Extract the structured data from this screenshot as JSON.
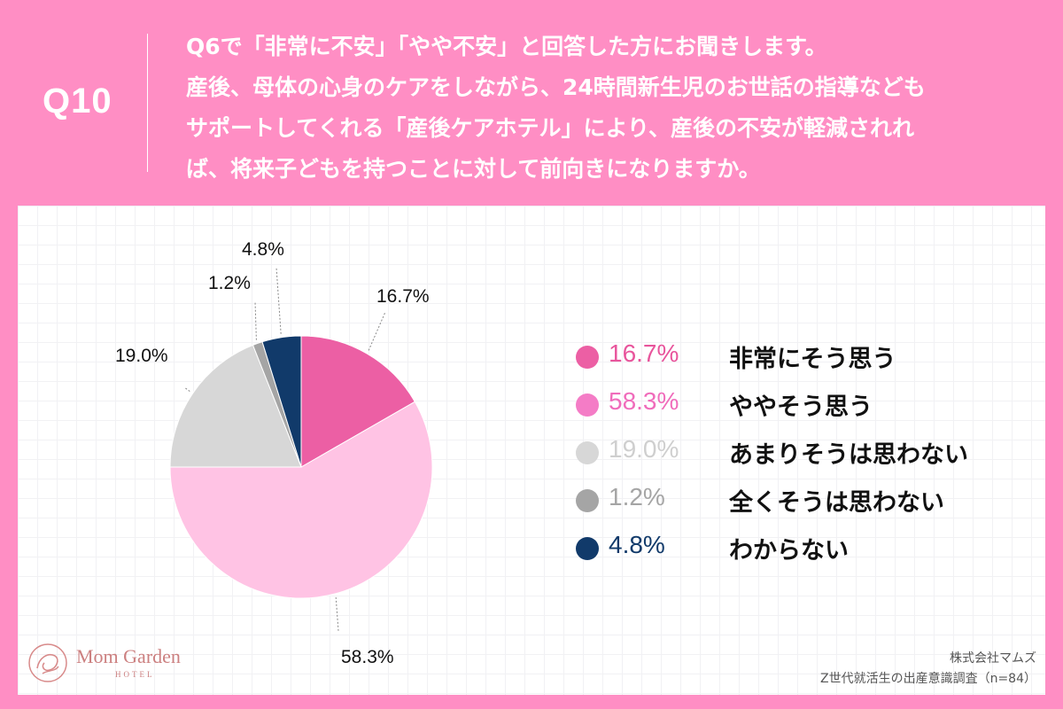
{
  "header": {
    "qnum": "Q10",
    "question": "Q6で「非常に不安」「やや不安」と回答した方にお聞きします。\n産後、母体の心身のケアをしながら、24時間新生児のお世話の指導なども\nサポートしてくれる「産後ケアホテル」により、産後の不安が軽減されれ\nば、将来子どもを持つことに対して前向きになりますか。"
  },
  "chart_data": {
    "type": "pie",
    "categories": [
      "非常にそう思う",
      "ややそう思う",
      "あまりそうは思わない",
      "全くそうは思わない",
      "わからない"
    ],
    "values": [
      16.7,
      58.3,
      19.0,
      1.2,
      4.8
    ],
    "value_labels": [
      "16.7%",
      "58.3%",
      "19.0%",
      "1.2%",
      "4.8%"
    ],
    "colors": [
      "#ec5fa4",
      "#ffc3e4",
      "#d7d7d7",
      "#a5a5a5",
      "#113a6a"
    ],
    "legend_colors": [
      "#ec5fa4",
      "#f47cc6",
      "#d7d7d7",
      "#a5a5a5",
      "#113a6a"
    ],
    "start_angle": "12 o'clock",
    "direction": "clockwise",
    "legend_position": "right"
  },
  "legend": [
    {
      "pct": "16.7%",
      "label": "非常にそう思う",
      "color": "#ec5fa4",
      "text_color": "#e8559c"
    },
    {
      "pct": "58.3%",
      "label": "ややそう思う",
      "color": "#f47cc6",
      "text_color": "#f06cbb"
    },
    {
      "pct": "19.0%",
      "label": "あまりそうは思わない",
      "color": "#d7d7d7",
      "text_color": "#cfcfcf"
    },
    {
      "pct": "1.2%",
      "label": "全くそうは思わない",
      "color": "#a5a5a5",
      "text_color": "#a5a5a5"
    },
    {
      "pct": "4.8%",
      "label": "わからない",
      "color": "#113a6a",
      "text_color": "#113a6a"
    }
  ],
  "logo": {
    "name": "Mom Garden",
    "sub": "HOTEL"
  },
  "source": {
    "line1": "株式会社マムズ",
    "line2": "Z世代就活生の出産意識調査（n=84）"
  }
}
